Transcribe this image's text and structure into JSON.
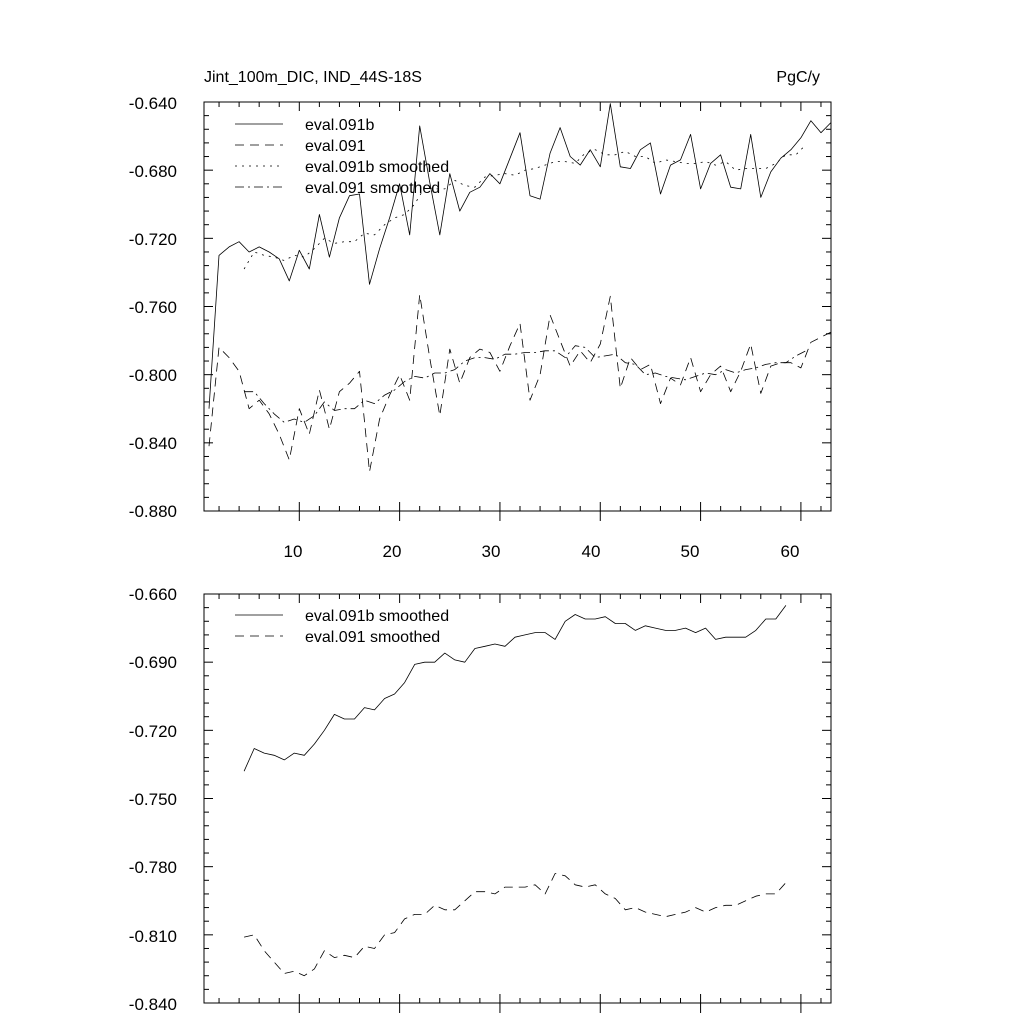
{
  "chart_data": [
    {
      "type": "line",
      "title_left": "Jint_100m_DIC, IND_44S-18S",
      "title_right": "PgC/y",
      "xlabel": "",
      "ylabel": "",
      "xlim": [
        0.5,
        63
      ],
      "ylim": [
        -0.88,
        -0.64
      ],
      "yticks": [
        "-0.640",
        "-0.680",
        "-0.720",
        "-0.760",
        "-0.800",
        "-0.840",
        "-0.880"
      ],
      "xticks": [
        "10",
        "20",
        "30",
        "40",
        "50",
        "60"
      ],
      "grid": false,
      "legend_position": "top-left",
      "series": [
        {
          "name": "eval.091b",
          "style": "solid",
          "x_start": 1,
          "values": [
            -0.82,
            -0.73,
            -0.725,
            -0.722,
            -0.728,
            -0.725,
            -0.728,
            -0.732,
            -0.745,
            -0.727,
            -0.738,
            -0.706,
            -0.731,
            -0.708,
            -0.695,
            -0.694,
            -0.747,
            -0.726,
            -0.708,
            -0.688,
            -0.718,
            -0.654,
            -0.687,
            -0.718,
            -0.682,
            -0.704,
            -0.693,
            -0.69,
            -0.682,
            -0.688,
            -0.673,
            -0.658,
            -0.695,
            -0.697,
            -0.67,
            -0.655,
            -0.672,
            -0.677,
            -0.668,
            -0.678,
            -0.641,
            -0.678,
            -0.679,
            -0.668,
            -0.664,
            -0.694,
            -0.677,
            -0.674,
            -0.659,
            -0.691,
            -0.676,
            -0.671,
            -0.69,
            -0.691,
            -0.659,
            -0.696,
            -0.681,
            -0.673,
            -0.668,
            -0.661,
            -0.651,
            -0.658,
            -0.652
          ]
        },
        {
          "name": "eval.091",
          "style": "dash",
          "x_start": 1,
          "values": [
            -0.842,
            -0.784,
            -0.79,
            -0.798,
            -0.82,
            -0.815,
            -0.823,
            -0.835,
            -0.85,
            -0.82,
            -0.835,
            -0.809,
            -0.832,
            -0.81,
            -0.805,
            -0.798,
            -0.857,
            -0.826,
            -0.812,
            -0.8,
            -0.815,
            -0.753,
            -0.79,
            -0.824,
            -0.785,
            -0.805,
            -0.79,
            -0.785,
            -0.787,
            -0.798,
            -0.783,
            -0.77,
            -0.815,
            -0.8,
            -0.765,
            -0.78,
            -0.795,
            -0.786,
            -0.793,
            -0.782,
            -0.754,
            -0.808,
            -0.79,
            -0.797,
            -0.794,
            -0.817,
            -0.802,
            -0.806,
            -0.79,
            -0.81,
            -0.8,
            -0.795,
            -0.81,
            -0.798,
            -0.782,
            -0.811,
            -0.795,
            -0.793,
            -0.793,
            -0.796,
            -0.781,
            -0.778,
            -0.775
          ]
        },
        {
          "name": "eval.091b smoothed",
          "style": "dot",
          "x_start": 4.5,
          "values": [
            -0.738,
            -0.728,
            -0.73,
            -0.731,
            -0.733,
            -0.73,
            -0.731,
            -0.726,
            -0.72,
            -0.723,
            -0.722,
            -0.722,
            -0.717,
            -0.718,
            -0.712,
            -0.708,
            -0.706,
            -0.7,
            -0.69,
            -0.691,
            -0.691,
            -0.686,
            -0.689,
            -0.69,
            -0.684,
            -0.683,
            -0.682,
            -0.683,
            -0.68,
            -0.679,
            -0.677,
            -0.675,
            -0.675,
            -0.676,
            -0.67,
            -0.668,
            -0.671,
            -0.671,
            -0.669,
            -0.672,
            -0.672,
            -0.676,
            -0.674,
            -0.675,
            -0.676,
            -0.676,
            -0.675,
            -0.677,
            -0.675,
            -0.68,
            -0.679,
            -0.679,
            -0.679,
            -0.676,
            -0.671,
            -0.671,
            -0.665
          ]
        },
        {
          "name": "eval.091 smoothed",
          "style": "dashdot",
          "x_start": 4.5,
          "values": [
            -0.81,
            -0.81,
            -0.817,
            -0.823,
            -0.828,
            -0.826,
            -0.828,
            -0.824,
            -0.816,
            -0.821,
            -0.82,
            -0.82,
            -0.815,
            -0.817,
            -0.812,
            -0.809,
            -0.804,
            -0.801,
            -0.802,
            -0.799,
            -0.799,
            -0.797,
            -0.792,
            -0.79,
            -0.79,
            -0.791,
            -0.788,
            -0.788,
            -0.787,
            -0.787,
            -0.786,
            -0.786,
            -0.79,
            -0.783,
            -0.784,
            -0.79,
            -0.789,
            -0.788,
            -0.793,
            -0.794,
            -0.8,
            -0.799,
            -0.801,
            -0.802,
            -0.803,
            -0.801,
            -0.799,
            -0.8,
            -0.797,
            -0.799,
            -0.797,
            -0.796,
            -0.794,
            -0.793,
            -0.793,
            -0.789,
            -0.786
          ]
        }
      ]
    },
    {
      "type": "line",
      "title_left": "",
      "title_right": "",
      "xlabel": "",
      "ylabel": "",
      "xlim": [
        0.5,
        63
      ],
      "ylim": [
        -0.84,
        -0.66
      ],
      "yticks": [
        "-0.660",
        "-0.690",
        "-0.720",
        "-0.750",
        "-0.780",
        "-0.810",
        "-0.840"
      ],
      "xticks": [],
      "grid": false,
      "legend_position": "top-left",
      "series": [
        {
          "name": "eval.091b smoothed",
          "style": "solid",
          "x_start": 4.5,
          "values": [
            -0.738,
            -0.728,
            -0.73,
            -0.731,
            -0.733,
            -0.73,
            -0.731,
            -0.726,
            -0.72,
            -0.713,
            -0.715,
            -0.715,
            -0.71,
            -0.711,
            -0.706,
            -0.704,
            -0.699,
            -0.691,
            -0.69,
            -0.69,
            -0.686,
            -0.689,
            -0.69,
            -0.684,
            -0.683,
            -0.682,
            -0.683,
            -0.679,
            -0.678,
            -0.677,
            -0.677,
            -0.68,
            -0.672,
            -0.669,
            -0.671,
            -0.671,
            -0.67,
            -0.673,
            -0.673,
            -0.676,
            -0.674,
            -0.675,
            -0.676,
            -0.676,
            -0.675,
            -0.677,
            -0.675,
            -0.68,
            -0.679,
            -0.679,
            -0.679,
            -0.676,
            -0.671,
            -0.671,
            -0.665
          ]
        },
        {
          "name": "eval.091 smoothed",
          "style": "dash",
          "x_start": 4.5,
          "values": [
            -0.811,
            -0.81,
            -0.817,
            -0.822,
            -0.827,
            -0.826,
            -0.828,
            -0.825,
            -0.817,
            -0.82,
            -0.819,
            -0.82,
            -0.815,
            -0.816,
            -0.81,
            -0.809,
            -0.803,
            -0.801,
            -0.801,
            -0.797,
            -0.799,
            -0.799,
            -0.795,
            -0.791,
            -0.791,
            -0.792,
            -0.789,
            -0.789,
            -0.789,
            -0.788,
            -0.792,
            -0.783,
            -0.784,
            -0.788,
            -0.789,
            -0.788,
            -0.792,
            -0.794,
            -0.799,
            -0.798,
            -0.8,
            -0.801,
            -0.802,
            -0.801,
            -0.8,
            -0.798,
            -0.8,
            -0.798,
            -0.797,
            -0.797,
            -0.795,
            -0.793,
            -0.792,
            -0.792,
            -0.787
          ]
        }
      ]
    }
  ]
}
